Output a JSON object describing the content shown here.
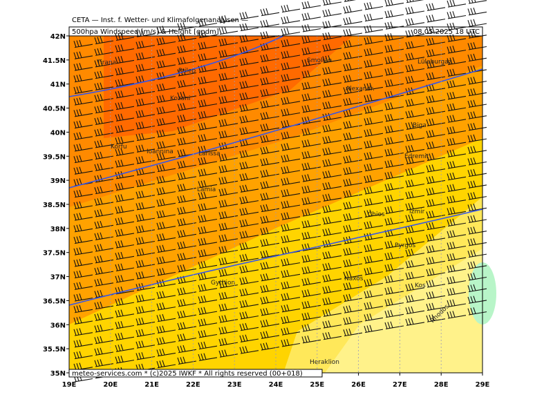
{
  "header": {
    "institute": "CETA — Inst. f. Wetter- und Klimafolgenanalysen —",
    "product": "500hpa Windspeed [m/s] & Height [gpdm]",
    "valid": "08.05.2025 18 UTC"
  },
  "footer": "meteo-services.com * (c)2025 IWKF * All rights reserved (00+018)",
  "map": {
    "lonlim": [
      19,
      29
    ],
    "latlim": [
      35,
      42
    ],
    "lonticks": [
      {
        "value": 19,
        "label": "19E"
      },
      {
        "value": 20,
        "label": "20E"
      },
      {
        "value": 21,
        "label": "21E"
      },
      {
        "value": 22,
        "label": "22E"
      },
      {
        "value": 23,
        "label": "23E"
      },
      {
        "value": 24,
        "label": "24E"
      },
      {
        "value": 25,
        "label": "25E"
      },
      {
        "value": 26,
        "label": "26E"
      },
      {
        "value": 27,
        "label": "27E"
      },
      {
        "value": 28,
        "label": "28E"
      },
      {
        "value": 29,
        "label": "29E"
      }
    ],
    "latticks": [
      {
        "value": 35,
        "label": "35N"
      },
      {
        "value": 35.5,
        "label": "35.5N"
      },
      {
        "value": 36,
        "label": "36N"
      },
      {
        "value": 36.5,
        "label": "36.5N"
      },
      {
        "value": 37,
        "label": "37N"
      },
      {
        "value": 37.5,
        "label": "37.5N"
      },
      {
        "value": 38,
        "label": "38N"
      },
      {
        "value": 38.5,
        "label": "38.5N"
      },
      {
        "value": 39,
        "label": "39N"
      },
      {
        "value": 39.5,
        "label": "39.5N"
      },
      {
        "value": 40,
        "label": "40N"
      },
      {
        "value": 40.5,
        "label": "40.5N"
      },
      {
        "value": 41,
        "label": "41N"
      },
      {
        "value": 41.5,
        "label": "41.5N"
      },
      {
        "value": 42,
        "label": "42N"
      }
    ],
    "cities": [
      "Tirana",
      "Prilep",
      "Smolian",
      "Lüleburgaz",
      "Alexandr.",
      "Kozani",
      "Ioannina",
      "Korfu",
      "Larissa",
      "Lamia",
      "Biga",
      "Edremit",
      "Chios",
      "Izmir",
      "Pyrgos",
      "Naxos",
      "Kos",
      "Rhodos",
      "Gythion",
      "Heraklion"
    ]
  }
}
